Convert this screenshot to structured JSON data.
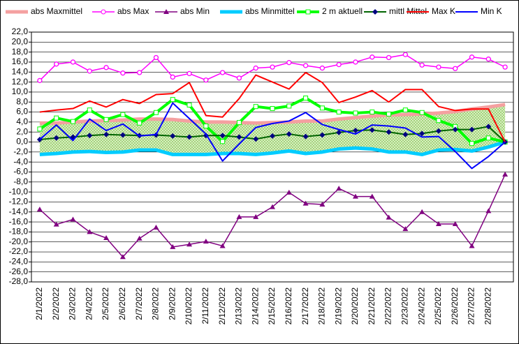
{
  "chart_data": {
    "type": "line",
    "categories": [
      "2/1/2022",
      "2/2/2022",
      "2/3/2022",
      "2/4/2022",
      "2/5/2022",
      "2/6/2022",
      "2/7/2022",
      "2/8/2022",
      "2/9/2022",
      "2/10/2022",
      "2/11/2022",
      "2/12/2022",
      "2/13/2022",
      "2/14/2022",
      "2/15/2022",
      "2/16/2022",
      "2/17/2022",
      "2/18/2022",
      "2/19/2022",
      "2/20/2022",
      "2/21/2022",
      "2/22/2022",
      "2/23/2022",
      "2/24/2022",
      "2/25/2022",
      "2/26/2022",
      "2/27/2022",
      "2/28/2022",
      null
    ],
    "series": [
      {
        "name": "abs Maxmittel",
        "color": "#f4a0a0",
        "marker": "none",
        "values": [
          3.8,
          3.8,
          4.0,
          4.2,
          4.3,
          4.4,
          4.6,
          4.6,
          4.5,
          4.2,
          4.0,
          4.0,
          3.9,
          3.8,
          3.9,
          4.0,
          4.2,
          4.2,
          4.6,
          4.9,
          5.2,
          5.4,
          5.5,
          5.6,
          5.8,
          6.1,
          6.6,
          7.0,
          7.5
        ]
      },
      {
        "name": "abs Max",
        "color": "#ff00ff",
        "marker": "circle",
        "values": [
          12.3,
          15.6,
          16.0,
          14.2,
          14.9,
          13.8,
          13.9,
          16.9,
          13.0,
          13.7,
          12.4,
          13.9,
          12.8,
          14.8,
          15.0,
          15.9,
          15.3,
          14.8,
          15.5,
          16.0,
          17.0,
          16.9,
          17.5,
          15.4,
          15.0,
          14.7,
          17.0,
          16.6,
          15.0
        ]
      },
      {
        "name": "abs Min",
        "color": "#800080",
        "marker": "triangle",
        "values": [
          -13.5,
          -16.5,
          -15.5,
          -18.0,
          -19.2,
          -23.0,
          -19.3,
          -17.1,
          -21.0,
          -20.5,
          -19.9,
          -20.8,
          -15.0,
          -15.0,
          -13.0,
          -10.1,
          -12.3,
          -12.5,
          -9.3,
          -10.9,
          -10.9,
          -15.1,
          -17.4,
          -14.0,
          -16.4,
          -16.4,
          -20.8,
          -13.8,
          -6.5
        ]
      },
      {
        "name": "abs Minmittel",
        "color": "#00ccff",
        "marker": "none",
        "values": [
          -2.5,
          -2.3,
          -2.0,
          -1.9,
          -2.1,
          -2.0,
          -1.6,
          -1.6,
          -2.5,
          -2.5,
          -2.5,
          -2.3,
          -2.3,
          -2.5,
          -2.2,
          -1.8,
          -2.3,
          -2.0,
          -1.4,
          -1.2,
          -1.4,
          -2.0,
          -2.0,
          -2.5,
          -1.6,
          -1.5,
          -1.8,
          -1.0,
          0.0
        ]
      },
      {
        "name": "2 m aktuell",
        "color": "#00ff00",
        "marker": "square",
        "values": [
          2.6,
          4.8,
          4.1,
          6.4,
          4.5,
          5.5,
          3.8,
          5.9,
          8.5,
          7.4,
          3.2,
          0.1,
          3.9,
          7.1,
          6.7,
          7.2,
          8.8,
          6.8,
          6.0,
          5.8,
          6.0,
          5.6,
          6.4,
          5.9,
          4.3,
          3.1,
          -0.3,
          0.8,
          0.0
        ]
      },
      {
        "name": "mittl Mittel",
        "color": "#006400",
        "marker": "diamond",
        "values": [
          0.5,
          0.8,
          1.0,
          1.3,
          1.5,
          1.4,
          1.3,
          1.4,
          1.2,
          1.0,
          1.3,
          1.3,
          1.0,
          0.6,
          1.2,
          1.6,
          1.1,
          1.4,
          1.9,
          2.3,
          2.4,
          2.0,
          1.5,
          1.7,
          2.2,
          2.5,
          2.5,
          3.1,
          0.0
        ]
      },
      {
        "name": "Max K",
        "color": "#ff0000",
        "marker": "none",
        "values": [
          6.0,
          6.4,
          6.7,
          8.2,
          7.0,
          8.5,
          7.7,
          9.5,
          9.7,
          11.9,
          5.3,
          5.0,
          8.7,
          13.4,
          12.0,
          10.6,
          13.9,
          11.9,
          7.9,
          9.0,
          10.3,
          8.0,
          10.5,
          10.5,
          7.1,
          6.3,
          6.6,
          6.6,
          0.0
        ]
      },
      {
        "name": "Min K",
        "color": "#0000ff",
        "marker": "none",
        "values": [
          0.5,
          3.4,
          0.3,
          4.6,
          2.3,
          3.6,
          1.2,
          1.5,
          7.8,
          4.7,
          1.6,
          -3.8,
          -0.4,
          2.9,
          3.7,
          4.2,
          5.9,
          3.5,
          2.5,
          1.6,
          3.4,
          3.2,
          2.8,
          1.0,
          1.1,
          -1.9,
          -5.3,
          -2.9,
          0.0
        ]
      }
    ],
    "ylim": [
      -28,
      22
    ],
    "yticks": [
      {
        "value": -28,
        "label": "-28,0"
      },
      {
        "value": -26,
        "label": "-26,0"
      },
      {
        "value": -24,
        "label": "-24,0"
      },
      {
        "value": -22,
        "label": "-22,0"
      },
      {
        "value": -20,
        "label": "-20,0"
      },
      {
        "value": -18,
        "label": "-18,0"
      },
      {
        "value": -16,
        "label": "-16,0"
      },
      {
        "value": -14,
        "label": "-14,0"
      },
      {
        "value": -12,
        "label": "-12,0"
      },
      {
        "value": -10,
        "label": "-10,0"
      },
      {
        "value": -8,
        "label": "-8,0"
      },
      {
        "value": -6,
        "label": "-6,0"
      },
      {
        "value": -4,
        "label": "-4,0"
      },
      {
        "value": -2,
        "label": "-2,0"
      },
      {
        "value": 0,
        "label": "0,0"
      },
      {
        "value": 2,
        "label": "2,0"
      },
      {
        "value": 4,
        "label": "4,0"
      },
      {
        "value": 6,
        "label": "6,0"
      },
      {
        "value": 8,
        "label": "8,0"
      },
      {
        "value": 10,
        "label": "10,0"
      },
      {
        "value": 12,
        "label": "12,0"
      },
      {
        "value": 14,
        "label": "14,0"
      },
      {
        "value": 16,
        "label": "16,0"
      },
      {
        "value": 18,
        "label": "18,0"
      },
      {
        "value": 20,
        "label": "20,0"
      },
      {
        "value": 22,
        "label": "22,0"
      }
    ],
    "grid": true,
    "legend": "top"
  }
}
